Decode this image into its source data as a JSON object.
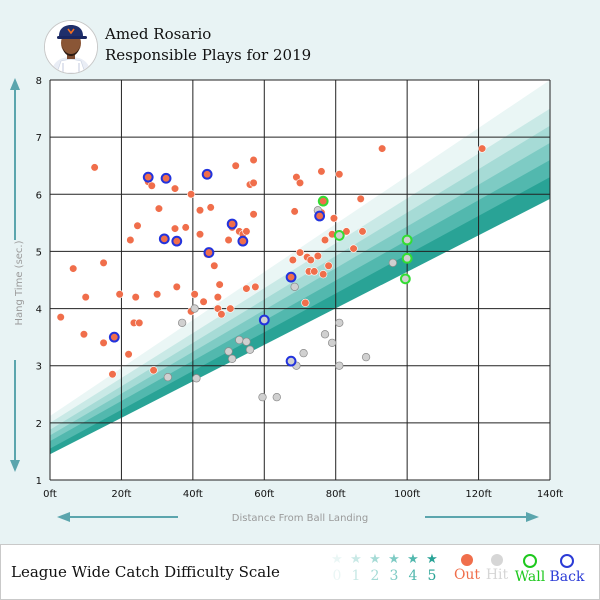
{
  "header": {
    "player_name": "Amed Rosario",
    "subtitle": "Responsible Plays for 2019"
  },
  "legend": {
    "title": "League Wide Catch Difficulty Scale",
    "difficulty_levels": [
      {
        "label": "0",
        "color": "#eaf6f5"
      },
      {
        "label": "1",
        "color": "#c9e9e6"
      },
      {
        "label": "2",
        "color": "#a6dbd6"
      },
      {
        "label": "3",
        "color": "#7ecbc4"
      },
      {
        "label": "4",
        "color": "#52b8ae"
      },
      {
        "label": "5",
        "color": "#29a396"
      }
    ],
    "results": [
      {
        "key": "out",
        "label": "Out",
        "color": "#f06e4b",
        "style": "filled"
      },
      {
        "key": "hit",
        "label": "Hit",
        "color": "#d6d6d6",
        "style": "filled"
      },
      {
        "key": "wall",
        "label": "Wall",
        "color": "#1ec81e",
        "style": "ring"
      },
      {
        "key": "back",
        "label": "Back",
        "color": "#2b3bd6",
        "style": "ring"
      }
    ]
  },
  "colors": {
    "out": "#f06e4b",
    "hit": "#d0d0d0",
    "wall": "#33dd33",
    "back": "#2233dd",
    "arrow": "#5ba5ad",
    "axis_label": "#9a9a9a"
  },
  "chart_data": {
    "type": "scatter",
    "xlabel": "Distance From Ball Landing",
    "ylabel": "Hang Time (sec.)",
    "xlim": [
      0,
      140
    ],
    "ylim": [
      1,
      8
    ],
    "x_ticks": [
      "0ft",
      "20ft",
      "40ft",
      "60ft",
      "80ft",
      "100ft",
      "120ft",
      "140ft"
    ],
    "y_ticks": [
      "1",
      "2",
      "3",
      "4",
      "5",
      "6",
      "7",
      "8"
    ],
    "grid": true,
    "series": [
      {
        "name": "Out",
        "points": [
          [
            3,
            3.85
          ],
          [
            6.5,
            4.7
          ],
          [
            9.5,
            3.55
          ],
          [
            10,
            4.2
          ],
          [
            12.5,
            6.47
          ],
          [
            15,
            3.4
          ],
          [
            15,
            4.8
          ],
          [
            17.5,
            2.85
          ],
          [
            19.5,
            4.25
          ],
          [
            22,
            3.2
          ],
          [
            22.5,
            5.2
          ],
          [
            23.5,
            3.75
          ],
          [
            24,
            4.2
          ],
          [
            24.5,
            5.45
          ],
          [
            25,
            3.75
          ],
          [
            27.5,
            6.22
          ],
          [
            28.5,
            6.15
          ],
          [
            29,
            2.92
          ],
          [
            30,
            4.25
          ],
          [
            30.5,
            5.75
          ],
          [
            32,
            5.25
          ],
          [
            35,
            6.1
          ],
          [
            35,
            5.4
          ],
          [
            35.5,
            4.38
          ],
          [
            38,
            5.42
          ],
          [
            39.5,
            6.0
          ],
          [
            39.5,
            3.95
          ],
          [
            40.5,
            4.25
          ],
          [
            42,
            5.72
          ],
          [
            42,
            5.3
          ],
          [
            42,
            5.3
          ],
          [
            43,
            4.12
          ],
          [
            44,
            4.95
          ],
          [
            45,
            5.77
          ],
          [
            46,
            4.75
          ],
          [
            47,
            4.2
          ],
          [
            47,
            4.0
          ],
          [
            47.5,
            4.42
          ],
          [
            48,
            3.9
          ],
          [
            50,
            5.2
          ],
          [
            50.5,
            4.0
          ],
          [
            51,
            5.42
          ],
          [
            52,
            6.5
          ],
          [
            53,
            5.35
          ],
          [
            54,
            5.2
          ],
          [
            54,
            5.3
          ],
          [
            55,
            5.35
          ],
          [
            55,
            4.35
          ],
          [
            56,
            6.17
          ],
          [
            57,
            6.6
          ],
          [
            57,
            6.2
          ],
          [
            57,
            5.65
          ],
          [
            57.5,
            4.38
          ],
          [
            68,
            4.85
          ],
          [
            68.5,
            5.7
          ],
          [
            69,
            6.3
          ],
          [
            70,
            6.2
          ],
          [
            70,
            4.98
          ],
          [
            71.5,
            4.1
          ],
          [
            72,
            4.9
          ],
          [
            72.5,
            4.65
          ],
          [
            73,
            4.85
          ],
          [
            74,
            4.65
          ],
          [
            75,
            4.92
          ],
          [
            76,
            6.4
          ],
          [
            76,
            5.68
          ],
          [
            76.5,
            4.6
          ],
          [
            77,
            5.2
          ],
          [
            78,
            4.75
          ],
          [
            79,
            5.3
          ],
          [
            79.5,
            5.58
          ],
          [
            81,
            6.35
          ],
          [
            83,
            5.35
          ],
          [
            85,
            5.05
          ],
          [
            87,
            5.92
          ],
          [
            87.5,
            5.35
          ],
          [
            93,
            6.8
          ],
          [
            121,
            6.8
          ]
        ]
      },
      {
        "name": "Hit",
        "points": [
          [
            33,
            2.8
          ],
          [
            37,
            3.75
          ],
          [
            40.5,
            4.0
          ],
          [
            41,
            2.78
          ],
          [
            50,
            3.25
          ],
          [
            51,
            3.12
          ],
          [
            53,
            3.45
          ],
          [
            55,
            3.42
          ],
          [
            56,
            3.28
          ],
          [
            59.5,
            2.45
          ],
          [
            63.5,
            2.45
          ],
          [
            68.5,
            4.38
          ],
          [
            69,
            3.0
          ],
          [
            71,
            3.22
          ],
          [
            75,
            5.72
          ],
          [
            77,
            3.55
          ],
          [
            79,
            3.4
          ],
          [
            81,
            3.75
          ],
          [
            81,
            3.0
          ],
          [
            88.5,
            3.15
          ],
          [
            96,
            4.8
          ]
        ]
      },
      {
        "name": "Wall",
        "points": [
          [
            76.5,
            5.88
          ],
          [
            81,
            5.28
          ],
          [
            100,
            5.2
          ],
          [
            100,
            4.88
          ],
          [
            99.5,
            4.52
          ]
        ]
      },
      {
        "name": "Back",
        "points": [
          [
            18,
            3.5
          ],
          [
            27.5,
            6.3
          ],
          [
            32,
            5.22
          ],
          [
            32.5,
            6.28
          ],
          [
            35.5,
            5.18
          ],
          [
            44,
            6.35
          ],
          [
            44.5,
            4.98
          ],
          [
            51,
            5.48
          ],
          [
            54,
            5.18
          ],
          [
            60,
            3.8
          ],
          [
            67.5,
            3.08
          ],
          [
            67.5,
            4.55
          ],
          [
            75.5,
            5.62
          ]
        ]
      }
    ],
    "back_markers": [
      {
        "x": 18,
        "y": 3.5,
        "inner": "out"
      },
      {
        "x": 27.5,
        "y": 6.3,
        "inner": "out"
      },
      {
        "x": 32,
        "y": 5.22,
        "inner": "out"
      },
      {
        "x": 32.5,
        "y": 6.28,
        "inner": "out"
      },
      {
        "x": 35.5,
        "y": 5.18,
        "inner": "out"
      },
      {
        "x": 44,
        "y": 6.35,
        "inner": "out"
      },
      {
        "x": 44.5,
        "y": 4.98,
        "inner": "out"
      },
      {
        "x": 51,
        "y": 5.48,
        "inner": "out"
      },
      {
        "x": 54,
        "y": 5.18,
        "inner": "out"
      },
      {
        "x": 60,
        "y": 3.8,
        "inner": "hit"
      },
      {
        "x": 67.5,
        "y": 3.08,
        "inner": "hit"
      },
      {
        "x": 67.5,
        "y": 4.55,
        "inner": "out"
      },
      {
        "x": 75.5,
        "y": 5.62,
        "inner": "out"
      }
    ],
    "wall_markers": [
      {
        "x": 76.5,
        "y": 5.88,
        "inner": "out"
      },
      {
        "x": 81,
        "y": 5.28,
        "inner": "hit"
      },
      {
        "x": 100,
        "y": 5.2,
        "inner": "hit"
      },
      {
        "x": 100,
        "y": 4.88,
        "inner": "hit"
      },
      {
        "x": 99.5,
        "y": 4.52,
        "inner": "hit"
      }
    ],
    "difficulty_bands": [
      {
        "level": 0,
        "y_at_0": 2.12,
        "y_at_140": 8.0,
        "color": "#eaf6f5"
      },
      {
        "level": 1,
        "y_at_0": 2.0,
        "y_at_140": 7.5,
        "color": "#c9e9e6"
      },
      {
        "level": 2,
        "y_at_0": 1.88,
        "y_at_140": 7.2,
        "color": "#a6dbd6"
      },
      {
        "level": 3,
        "y_at_0": 1.78,
        "y_at_140": 6.9,
        "color": "#7ecbc4"
      },
      {
        "level": 4,
        "y_at_0": 1.68,
        "y_at_140": 6.6,
        "color": "#52b8ae"
      },
      {
        "level": 5,
        "y_at_0": 1.55,
        "y_at_140": 6.3,
        "color": "#29a396"
      },
      {
        "level": 6,
        "y_at_0": 1.45,
        "y_at_140": 5.92,
        "color": "#ffffff"
      }
    ]
  }
}
